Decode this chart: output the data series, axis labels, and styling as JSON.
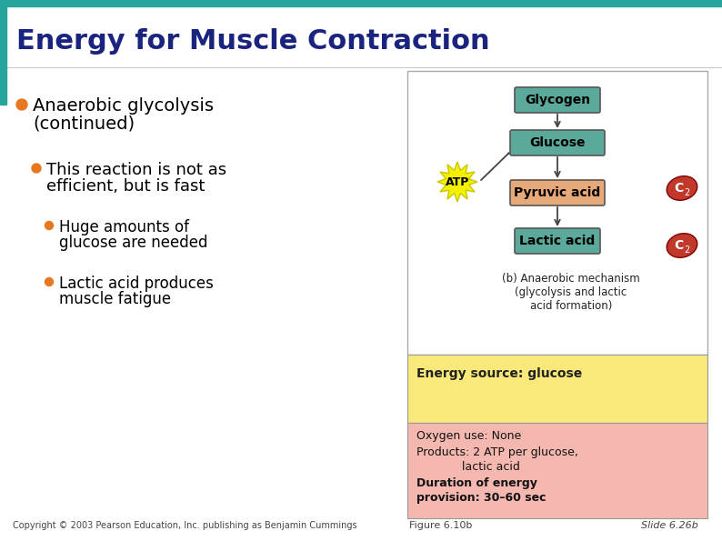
{
  "title": "Energy for Muscle Contraction",
  "title_color": "#1a237e",
  "title_fontsize": 22,
  "bg_color": "#ffffff",
  "top_bar_color": "#26a69a",
  "left_bar_color": "#26a69a",
  "bullet_color": "#e87722",
  "text_color": "#000000",
  "copyright": "Copyright © 2003 Pearson Education, Inc. publishing as Benjamin Cummings",
  "figure_label": "Figure 6.10b",
  "slide_label": "Slide 6.26b",
  "footer_color": "#444444",
  "footer_fontsize": 7,
  "glycogen_box_color": "#5ba99b",
  "glucose_box_color": "#5ba99b",
  "pyruvic_box_color": "#e8a97a",
  "lactic_box_color": "#5ba99b",
  "atp_star_color": "#f5f000",
  "atp_star_edge": "#c8c800",
  "co2_color": "#c0392b",
  "energy_source_bg": "#f9e87a",
  "pink_bg": "#f4b8b0",
  "white_bg": "#ffffff",
  "caption_text": "(b) Anaerobic mechanism\n(glycolysis and lactic\nacid formation)",
  "energy_source_text": "Energy source: glucose",
  "pink_text1": "Oxygen use: None",
  "pink_text2": "Products: 2 ATP per glucose,",
  "pink_text2b": "             lactic acid",
  "pink_text3": "Duration of energy",
  "pink_text4": "provision: 30–60 sec"
}
